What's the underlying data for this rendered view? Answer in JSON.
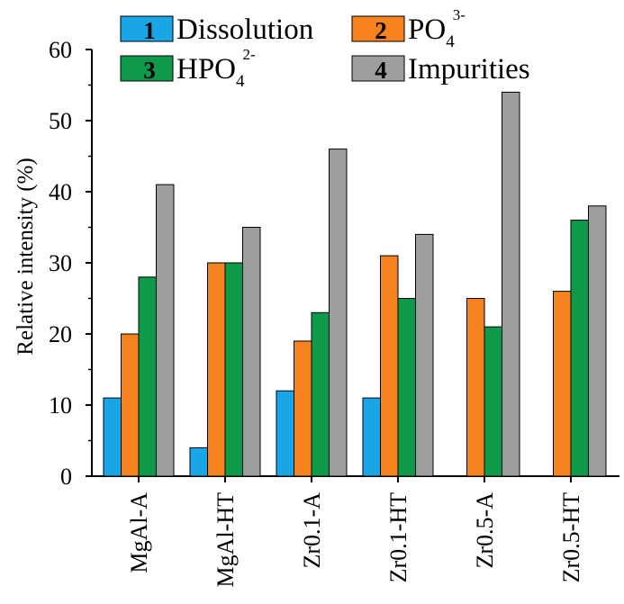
{
  "chart_data": {
    "type": "bar",
    "title": "",
    "xlabel": "",
    "ylabel": "Relative intensity (%)",
    "ylim": [
      0,
      60
    ],
    "yticks": [
      "0",
      "10",
      "20",
      "30",
      "40",
      "50",
      "60"
    ],
    "yticks_values": [
      0,
      10,
      20,
      30,
      40,
      50,
      60
    ],
    "categories": [
      "MgAl-A",
      "MgAl-HT",
      "Zr0.1-A",
      "Zr0.1-HT",
      "Zr0.5-A",
      "Zr0.5-HT"
    ],
    "legend_position": "top",
    "series": [
      {
        "name": "Dissolution",
        "number": "1",
        "sub": "",
        "sup": "",
        "color": "#1aa5e6",
        "values": [
          11,
          4,
          12,
          11,
          0,
          0
        ]
      },
      {
        "name": "PO",
        "number": "2",
        "sub": "4",
        "sup": "3-",
        "color": "#f5821f",
        "values": [
          20,
          30,
          19,
          31,
          25,
          26
        ]
      },
      {
        "name": "HPO",
        "number": "3",
        "sub": "4",
        "sup": "2-",
        "color": "#0e9a4a",
        "values": [
          28,
          30,
          23,
          25,
          21,
          36
        ]
      },
      {
        "name": "Impurities",
        "number": "4",
        "sub": "",
        "sup": "",
        "color": "#9e9e9e",
        "values": [
          41,
          35,
          46,
          34,
          54,
          38
        ]
      }
    ]
  }
}
